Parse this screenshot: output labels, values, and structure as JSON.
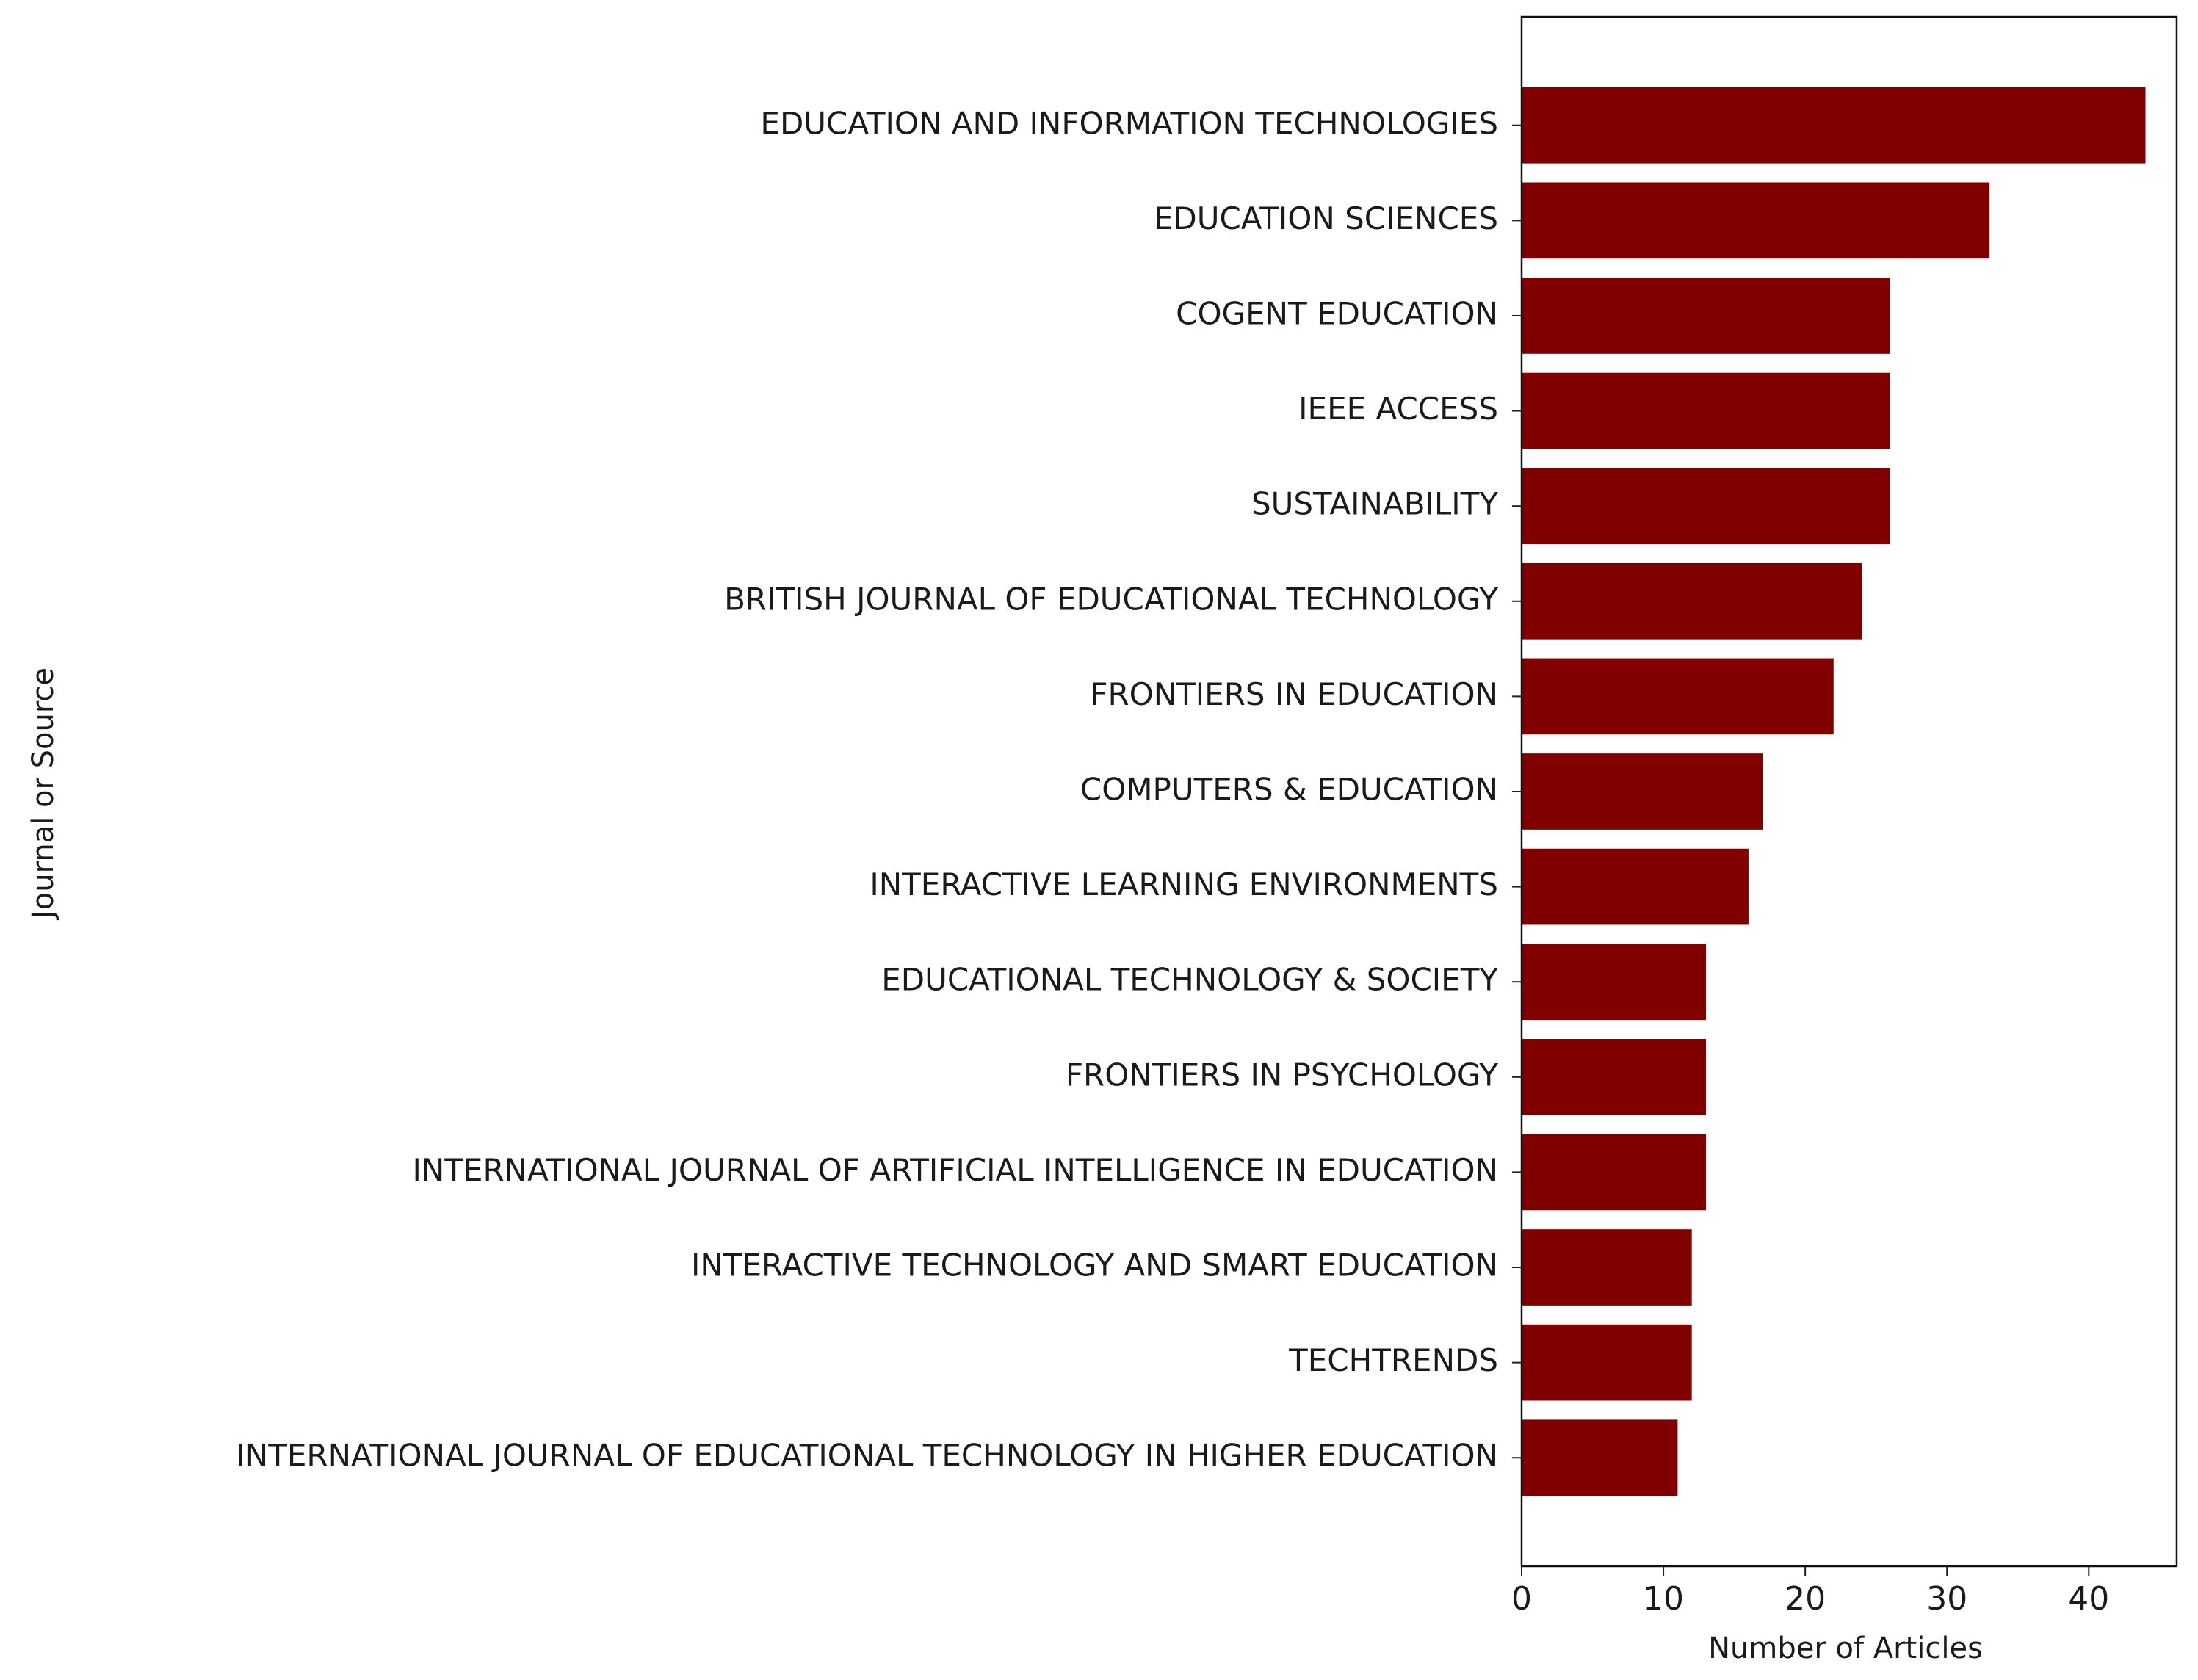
{
  "chart_data": {
    "type": "barh",
    "categories": [
      "EDUCATION AND INFORMATION TECHNOLOGIES",
      "EDUCATION SCIENCES",
      "COGENT EDUCATION",
      "IEEE ACCESS",
      "SUSTAINABILITY",
      "BRITISH JOURNAL OF EDUCATIONAL TECHNOLOGY",
      "FRONTIERS IN EDUCATION",
      "COMPUTERS & EDUCATION",
      "INTERACTIVE LEARNING ENVIRONMENTS",
      "EDUCATIONAL TECHNOLOGY & SOCIETY",
      "FRONTIERS IN PSYCHOLOGY",
      "INTERNATIONAL JOURNAL OF ARTIFICIAL INTELLIGENCE IN EDUCATION",
      "INTERACTIVE TECHNOLOGY AND SMART EDUCATION",
      "TECHTRENDS",
      "INTERNATIONAL JOURNAL OF EDUCATIONAL TECHNOLOGY IN HIGHER EDUCATION"
    ],
    "values": [
      44,
      33,
      26,
      26,
      26,
      24,
      22,
      17,
      16,
      13,
      13,
      13,
      12,
      12,
      11
    ],
    "color": "#800000",
    "xlabel": "Number of Articles",
    "ylabel": "Journal or Source",
    "xlim": [
      0,
      46.2
    ],
    "xticks": [
      0,
      10,
      20,
      30,
      40
    ]
  }
}
